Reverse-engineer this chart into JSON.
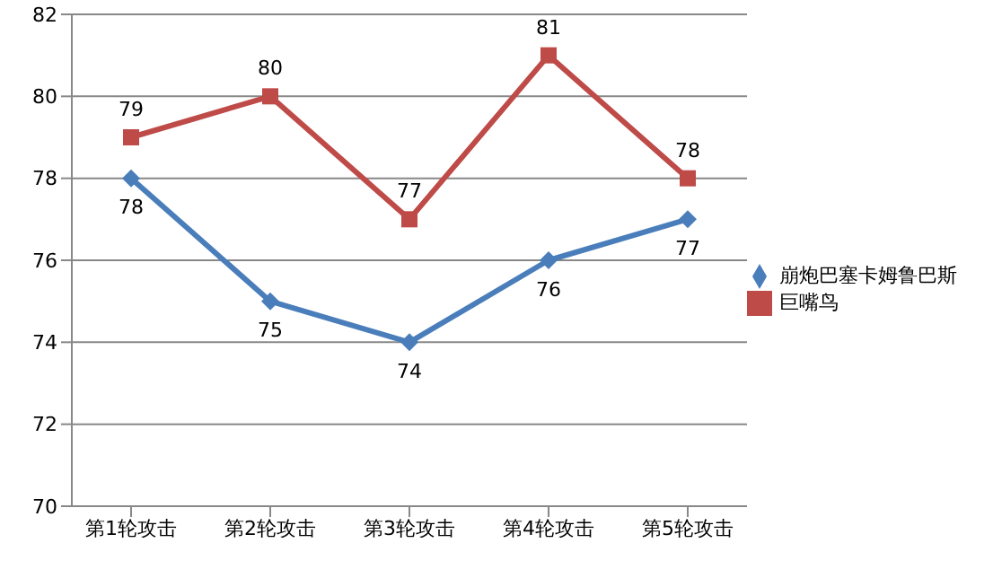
{
  "chart_data": {
    "type": "line",
    "categories": [
      "第1轮攻击",
      "第2轮攻击",
      "第3轮攻击",
      "第4轮攻击",
      "第5轮攻击"
    ],
    "series": [
      {
        "name": "崩炮巴塞卡姆鲁巴斯",
        "color": "#4a7ebb",
        "marker": "diamond",
        "values": [
          78,
          75,
          74,
          76,
          77
        ]
      },
      {
        "name": "巨嘴鸟",
        "color": "#be4b48",
        "marker": "square",
        "values": [
          79,
          80,
          77,
          81,
          78
        ]
      }
    ],
    "ylim": [
      70,
      82
    ],
    "yticks": [
      70,
      72,
      74,
      76,
      78,
      80,
      82
    ],
    "grid": "y",
    "legend": "right",
    "data_labels": true
  }
}
